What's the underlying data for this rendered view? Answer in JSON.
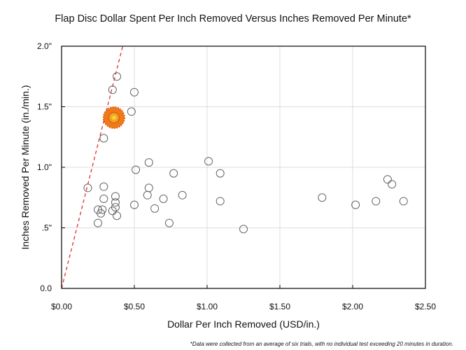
{
  "chart_data": {
    "type": "scatter",
    "title": "Flap Disc Dollar Spent Per Inch Removed Versus Inches Removed Per Minute*",
    "xlabel": "Dollar Per Inch Removed (USD/in.)",
    "ylabel": "Inches Removed Per Minute (in./min.)",
    "footnote": "*Data were collected from an average of six trials, with no individual test exceeding 20 minutes in duration.",
    "xlim": [
      0,
      2.5
    ],
    "ylim": [
      0,
      2.0
    ],
    "x_ticks": [
      {
        "value": 0,
        "label": "$0.00"
      },
      {
        "value": 0.5,
        "label": "$0.50"
      },
      {
        "value": 1.0,
        "label": "$1.00"
      },
      {
        "value": 1.5,
        "label": "$1.50"
      },
      {
        "value": 2.0,
        "label": "$2.00"
      },
      {
        "value": 2.5,
        "label": "$2.50"
      }
    ],
    "y_ticks": [
      {
        "value": 0,
        "label": "0.0"
      },
      {
        "value": 0.5,
        "label": ".5\""
      },
      {
        "value": 1.0,
        "label": "1.0\""
      },
      {
        "value": 1.5,
        "label": "1.5\""
      },
      {
        "value": 2.0,
        "label": "2.0\""
      }
    ],
    "grid": true,
    "reference_line": {
      "style": "dashed",
      "color": "#e03030",
      "from": [
        0,
        0
      ],
      "to": [
        0.42,
        2.0
      ]
    },
    "highlight_point": {
      "x": 0.36,
      "y": 1.41,
      "color": "#f07a1a"
    },
    "points": [
      {
        "x": 0.18,
        "y": 0.83
      },
      {
        "x": 0.25,
        "y": 0.65
      },
      {
        "x": 0.28,
        "y": 0.65
      },
      {
        "x": 0.27,
        "y": 0.62
      },
      {
        "x": 0.25,
        "y": 0.54
      },
      {
        "x": 0.29,
        "y": 0.74
      },
      {
        "x": 0.29,
        "y": 0.84
      },
      {
        "x": 0.29,
        "y": 1.24
      },
      {
        "x": 0.35,
        "y": 1.64
      },
      {
        "x": 0.38,
        "y": 1.75
      },
      {
        "x": 0.35,
        "y": 0.64
      },
      {
        "x": 0.37,
        "y": 0.67
      },
      {
        "x": 0.37,
        "y": 0.71
      },
      {
        "x": 0.37,
        "y": 0.76
      },
      {
        "x": 0.38,
        "y": 0.6
      },
      {
        "x": 0.48,
        "y": 1.46
      },
      {
        "x": 0.5,
        "y": 1.62
      },
      {
        "x": 0.51,
        "y": 0.98
      },
      {
        "x": 0.5,
        "y": 0.69
      },
      {
        "x": 0.59,
        "y": 0.77
      },
      {
        "x": 0.6,
        "y": 0.83
      },
      {
        "x": 0.6,
        "y": 1.04
      },
      {
        "x": 0.64,
        "y": 0.66
      },
      {
        "x": 0.7,
        "y": 0.74
      },
      {
        "x": 0.74,
        "y": 0.54
      },
      {
        "x": 0.77,
        "y": 0.95
      },
      {
        "x": 0.83,
        "y": 0.77
      },
      {
        "x": 1.01,
        "y": 1.05
      },
      {
        "x": 1.09,
        "y": 0.95
      },
      {
        "x": 1.09,
        "y": 0.72
      },
      {
        "x": 1.25,
        "y": 0.49
      },
      {
        "x": 1.79,
        "y": 0.75
      },
      {
        "x": 2.02,
        "y": 0.69
      },
      {
        "x": 2.16,
        "y": 0.72
      },
      {
        "x": 2.24,
        "y": 0.9
      },
      {
        "x": 2.27,
        "y": 0.86
      },
      {
        "x": 2.35,
        "y": 0.72
      }
    ]
  }
}
